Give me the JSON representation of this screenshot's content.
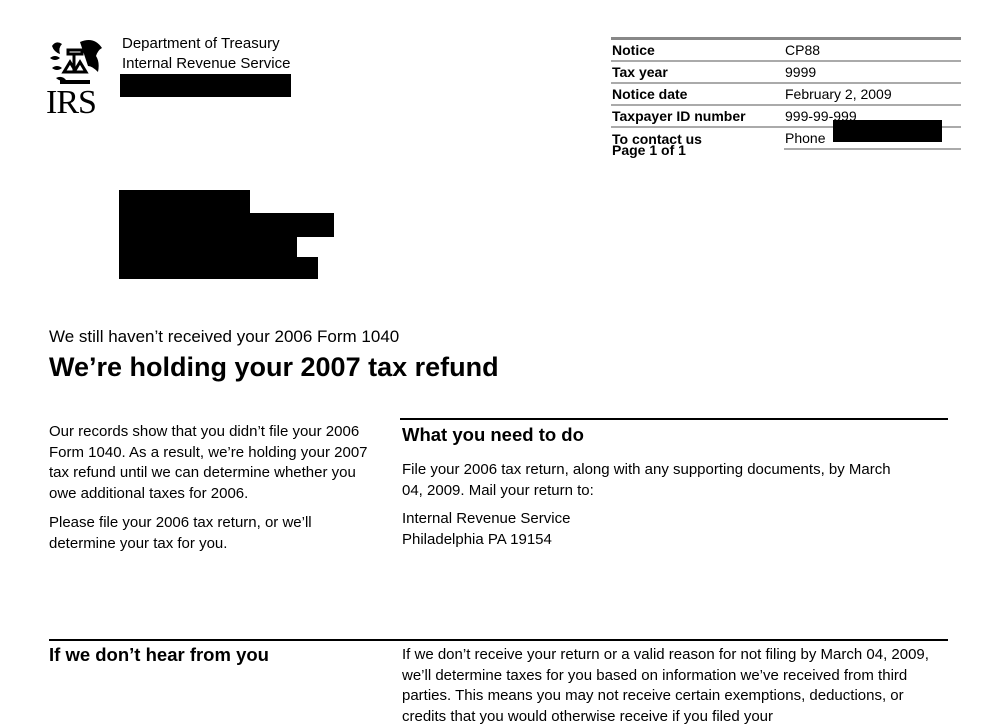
{
  "header": {
    "logo_text": "IRS",
    "agency_line1": "Department of Treasury",
    "agency_line2": "Internal Revenue Service"
  },
  "info_table": [
    {
      "label": "Notice",
      "value": "CP88"
    },
    {
      "label": "Tax year",
      "value": "9999"
    },
    {
      "label": "Notice date",
      "value": "February 2, 2009"
    },
    {
      "label": "Taxpayer ID number",
      "value": "999-99-999"
    },
    {
      "label": "To contact us",
      "value": "Phone"
    }
  ],
  "page_number": "Page 1 of 1",
  "subtitle": "We still haven’t received your 2006 Form 1040",
  "title": "We’re holding your 2007 tax refund",
  "left_intro": {
    "p1": "Our records show that you didn’t file your 2006 Form 1040.  As a result, we’re holding your 2007 tax refund until we can determine whether you owe additional taxes for 2006.",
    "p2": "Please file your 2006 tax return, or we’ll determine your tax for you."
  },
  "what_to_do": {
    "heading": "What you need to do",
    "p1": "File your 2006 tax return, along with any supporting documents, by March 04, 2009. Mail your return to:",
    "address_line1": "Internal Revenue Service",
    "address_line2": "Philadelphia PA 19154"
  },
  "if_no_hear": {
    "heading": "If we don’t hear from you",
    "p1": "If we don’t receive your return or a valid reason for not filing by March 04, 2009, we’ll determine taxes for you based on information we’ve received from third parties. This means you may not receive certain exemptions, deductions, or credits that you would otherwise receive if you filed your"
  }
}
